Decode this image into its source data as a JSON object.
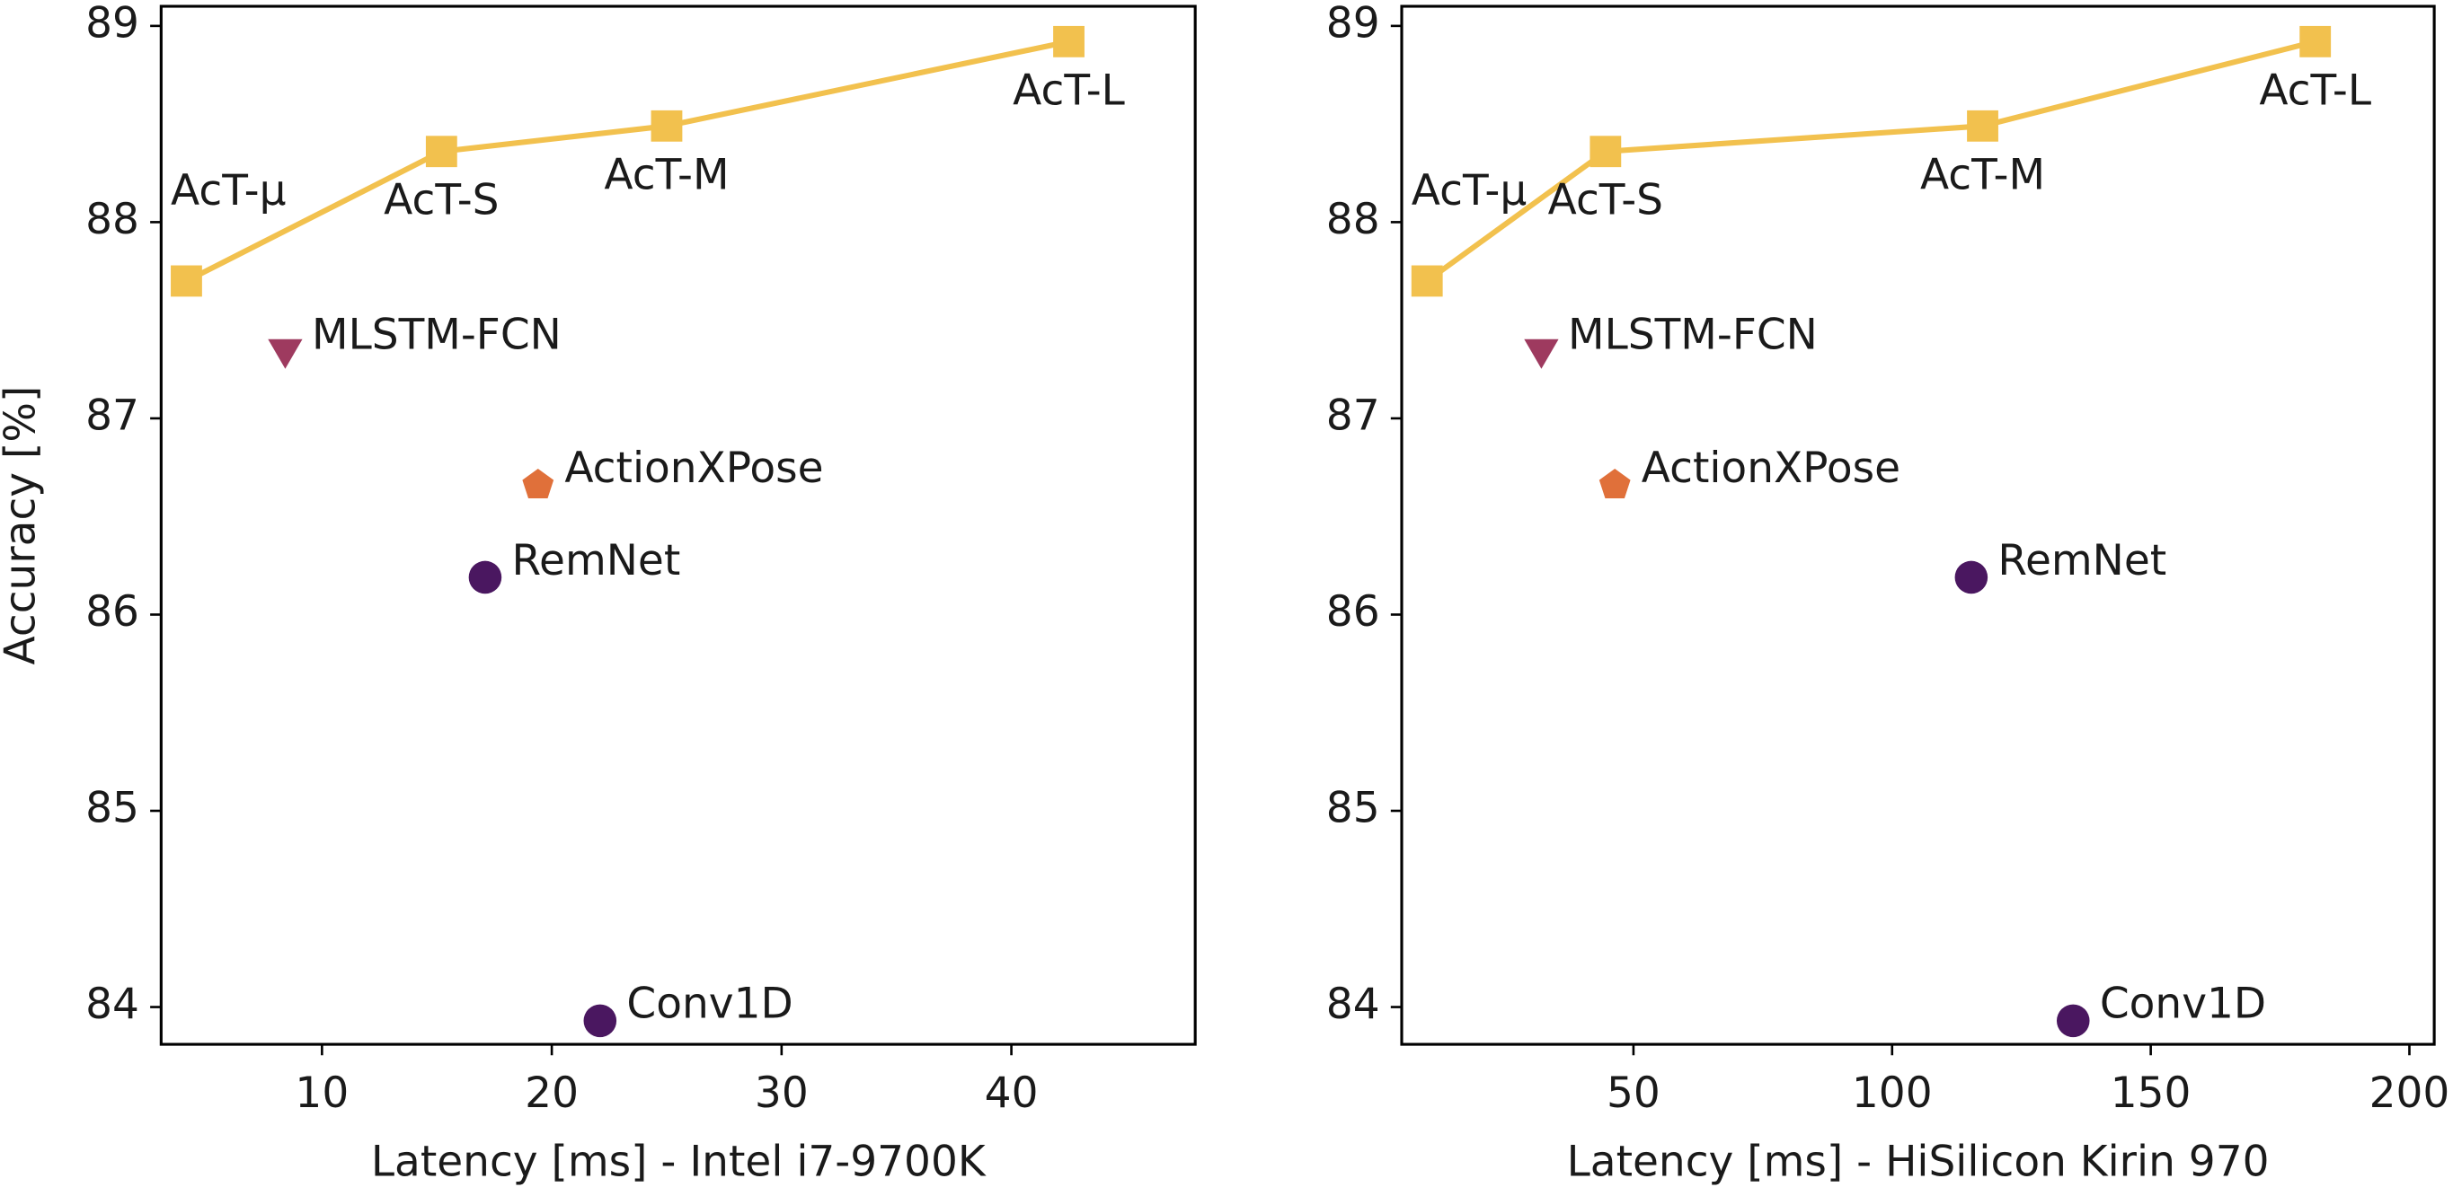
{
  "chart_data": [
    {
      "type": "scatter",
      "xlabel": "Latency [ms] - Intel i7-9700K",
      "ylabel": "Accuracy [%]",
      "xlim": [
        3.0,
        48.0
      ],
      "ylim": [
        83.81,
        89.1
      ],
      "xticks": [
        10,
        20,
        30,
        40
      ],
      "yticks": [
        84,
        85,
        86,
        87,
        88,
        89
      ],
      "series": [
        {
          "labels": [
            "AcT-µ",
            "AcT-S",
            "AcT-M",
            "AcT-L"
          ],
          "x": [
            4.1,
            15.2,
            25.0,
            42.5
          ],
          "values": [
            87.7,
            88.36,
            88.49,
            88.92
          ],
          "color": "#f2c14e",
          "marker": "square",
          "line": true
        },
        {
          "labels": [
            "MLSTM-FCN"
          ],
          "x": [
            8.4
          ],
          "values": [
            87.34
          ],
          "color": "#9e3a5f",
          "marker": "triangle"
        },
        {
          "labels": [
            "ActionXPose"
          ],
          "x": [
            19.4
          ],
          "values": [
            86.66
          ],
          "color": "#e0703a",
          "marker": "pentagon"
        },
        {
          "labels": [
            "RemNet",
            "Conv1D"
          ],
          "x": [
            17.1,
            22.1
          ],
          "values": [
            86.19,
            83.93
          ],
          "color": "#4a1760",
          "marker": "circle"
        }
      ]
    },
    {
      "type": "scatter",
      "xlabel": "Latency [ms] - HiSilicon Kirin 970",
      "xlim": [
        5.2,
        204.8
      ],
      "ylim": [
        83.81,
        89.1
      ],
      "xticks": [
        50,
        100,
        150,
        200
      ],
      "yticks": [
        84,
        85,
        86,
        87,
        88,
        89
      ],
      "series": [
        {
          "labels": [
            "AcT-µ",
            "AcT-S",
            "AcT-M",
            "AcT-L"
          ],
          "x": [
            10.1,
            44.6,
            117.5,
            181.8
          ],
          "values": [
            87.7,
            88.36,
            88.49,
            88.92
          ],
          "color": "#f2c14e",
          "marker": "square",
          "line": true
        },
        {
          "labels": [
            "MLSTM-FCN"
          ],
          "x": [
            32.2
          ],
          "values": [
            87.34
          ],
          "color": "#9e3a5f",
          "marker": "triangle"
        },
        {
          "labels": [
            "ActionXPose"
          ],
          "x": [
            46.4
          ],
          "values": [
            86.66
          ],
          "color": "#e0703a",
          "marker": "pentagon"
        },
        {
          "labels": [
            "RemNet",
            "Conv1D"
          ],
          "x": [
            115.3,
            135.0
          ],
          "values": [
            86.19,
            83.93
          ],
          "color": "#4a1760",
          "marker": "circle"
        }
      ]
    }
  ]
}
